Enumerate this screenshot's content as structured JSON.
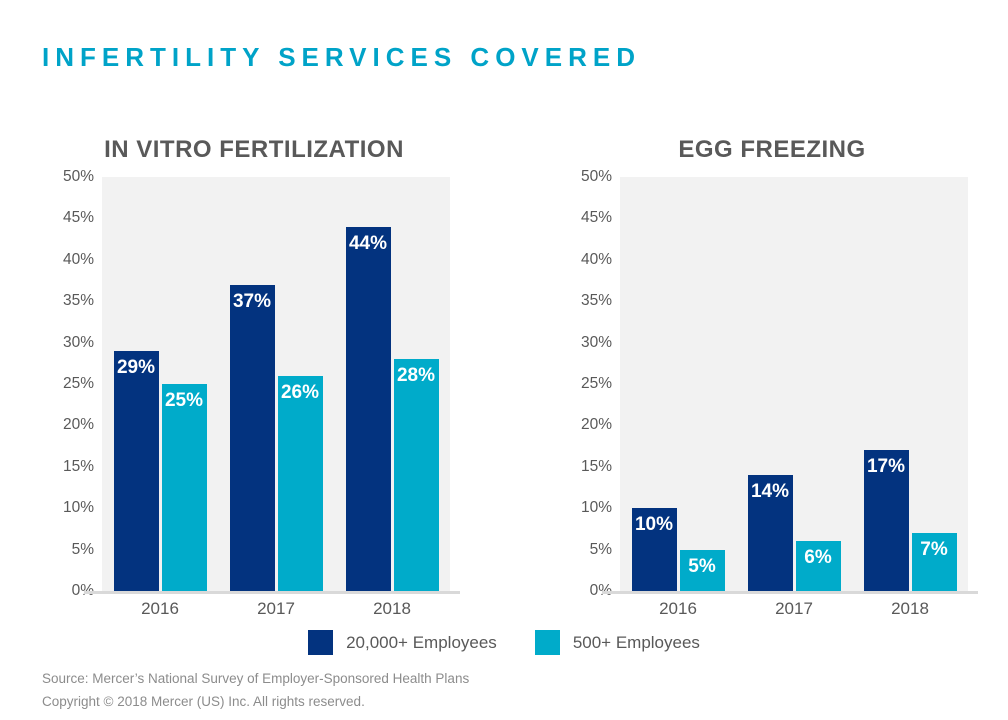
{
  "page": {
    "title": "INFERTILITY SERVICES COVERED"
  },
  "colors": {
    "title_teal": "#00A3C8",
    "navy": "#03337F",
    "cyan": "#00ABCA",
    "plot_bg": "#F2F2F2",
    "axis_line": "#D9D9D9",
    "axis_text": "#595959",
    "footer_text": "#8C8C8C"
  },
  "legend": {
    "items": [
      {
        "label": "20,000+ Employees",
        "color": "#03337F"
      },
      {
        "label": "500+ Employees",
        "color": "#00ABCA"
      }
    ]
  },
  "footer": {
    "source": "Source: Mercer’s National Survey of Employer-Sponsored Health Plans",
    "copyright": "Copyright © 2018 Mercer (US) Inc. All rights reserved."
  },
  "chart_data": [
    {
      "type": "bar",
      "title": "IN VITRO FERTILIZATION",
      "categories": [
        "2016",
        "2017",
        "2018"
      ],
      "series": [
        {
          "name": "20,000+ Employees",
          "color": "#03337F",
          "values": [
            29,
            37,
            44
          ]
        },
        {
          "name": "500+ Employees",
          "color": "#00ABCA",
          "values": [
            25,
            26,
            28
          ]
        }
      ],
      "ylim": [
        0,
        50
      ],
      "yticks": [
        "50%",
        "45%",
        "40%",
        "35%",
        "30%",
        "25%",
        "20%",
        "15%",
        "10%",
        "5%",
        "0%"
      ],
      "value_label_suffix": "%",
      "grid": false,
      "legend_position": "bottom-shared"
    },
    {
      "type": "bar",
      "title": "EGG FREEZING",
      "categories": [
        "2016",
        "2017",
        "2018"
      ],
      "series": [
        {
          "name": "20,000+ Employees",
          "color": "#03337F",
          "values": [
            10,
            14,
            17
          ]
        },
        {
          "name": "500+ Employees",
          "color": "#00ABCA",
          "values": [
            5,
            6,
            7
          ]
        }
      ],
      "ylim": [
        0,
        50
      ],
      "yticks": [
        "50%",
        "45%",
        "40%",
        "35%",
        "30%",
        "25%",
        "20%",
        "15%",
        "10%",
        "5%",
        "0%"
      ],
      "value_label_suffix": "%",
      "grid": false,
      "legend_position": "bottom-shared"
    }
  ]
}
